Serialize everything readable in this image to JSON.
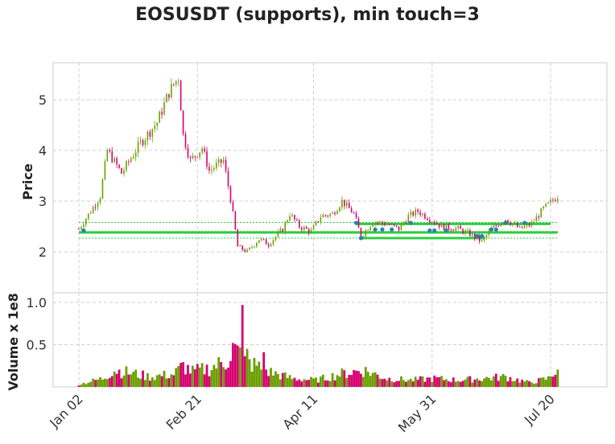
{
  "chart_data": {
    "type": "candlestick",
    "title": "EOSUSDT (supports), min touch=3",
    "price_panel": {
      "ylabel": "Price",
      "yticks": [
        2,
        3,
        4,
        5
      ],
      "ylim": [
        1.3,
        5.7
      ],
      "grid": true
    },
    "volume_panel": {
      "ylabel": "Volume x 1e8",
      "yticks": [
        0.5,
        1.0
      ],
      "ytick_labels": [
        "0.5",
        "1.0"
      ],
      "ylim": [
        0,
        1.05
      ],
      "grid": true
    },
    "x": {
      "start_date": "2023-01-02",
      "num_days": 203,
      "tick_labels": [
        "Jan 02",
        "Feb 21",
        "Apr 11",
        "May 31",
        "Jul 20"
      ],
      "tick_days": [
        0,
        50,
        99,
        149,
        199
      ]
    },
    "colors": {
      "up": "#6a9f00",
      "down": "#d6006f",
      "support": "#2ecc40",
      "marker": "#2c7fb8"
    },
    "price_anchors": [
      [
        0,
        2.45
      ],
      [
        5,
        2.8
      ],
      [
        9,
        3.1
      ],
      [
        12,
        4.0
      ],
      [
        18,
        3.55
      ],
      [
        26,
        4.15
      ],
      [
        33,
        4.55
      ],
      [
        38,
        5.15
      ],
      [
        42,
        5.45
      ],
      [
        44,
        4.3
      ],
      [
        47,
        3.8
      ],
      [
        52,
        4.05
      ],
      [
        55,
        3.6
      ],
      [
        61,
        3.8
      ],
      [
        64,
        3.05
      ],
      [
        67,
        2.1
      ],
      [
        71,
        2.0
      ],
      [
        76,
        2.25
      ],
      [
        80,
        2.15
      ],
      [
        86,
        2.45
      ],
      [
        89,
        2.75
      ],
      [
        93,
        2.5
      ],
      [
        98,
        2.4
      ],
      [
        102,
        2.7
      ],
      [
        107,
        2.75
      ],
      [
        111,
        3.0
      ],
      [
        116,
        2.75
      ],
      [
        119,
        2.3
      ],
      [
        124,
        2.6
      ],
      [
        130,
        2.55
      ],
      [
        135,
        2.45
      ],
      [
        139,
        2.7
      ],
      [
        143,
        2.8
      ],
      [
        148,
        2.65
      ],
      [
        153,
        2.5
      ],
      [
        160,
        2.45
      ],
      [
        165,
        2.35
      ],
      [
        170,
        2.2
      ],
      [
        174,
        2.45
      ],
      [
        180,
        2.65
      ],
      [
        186,
        2.45
      ],
      [
        191,
        2.55
      ],
      [
        196,
        2.85
      ],
      [
        202,
        3.1
      ]
    ],
    "volume_anchors": [
      [
        0,
        0.03
      ],
      [
        10,
        0.1
      ],
      [
        15,
        0.2
      ],
      [
        30,
        0.12
      ],
      [
        40,
        0.15
      ],
      [
        44,
        0.25
      ],
      [
        48,
        0.18
      ],
      [
        55,
        0.22
      ],
      [
        62,
        0.3
      ],
      [
        66,
        0.45
      ],
      [
        70,
        0.3
      ],
      [
        75,
        0.25
      ],
      [
        80,
        0.18
      ],
      [
        90,
        0.1
      ],
      [
        100,
        0.08
      ],
      [
        110,
        0.15
      ],
      [
        120,
        0.2
      ],
      [
        130,
        0.1
      ],
      [
        140,
        0.08
      ],
      [
        150,
        0.1
      ],
      [
        160,
        0.08
      ],
      [
        170,
        0.1
      ],
      [
        180,
        0.12
      ],
      [
        190,
        0.05
      ],
      [
        198,
        0.1
      ],
      [
        202,
        0.22
      ]
    ],
    "volume_spikes": [
      [
        65,
        0.52
      ],
      [
        69,
        0.97
      ],
      [
        71,
        0.45
      ],
      [
        78,
        0.41
      ]
    ],
    "support_levels": [
      {
        "price": 2.55,
        "from_day": 117,
        "to_day": 199,
        "style": "solid"
      },
      {
        "price": 2.38,
        "from_day": 0,
        "to_day": 202,
        "style": "solid"
      },
      {
        "price": 2.27,
        "from_day": 119,
        "to_day": 171,
        "style": "solid"
      },
      {
        "price": 2.58,
        "from_day": 0,
        "to_day": 202,
        "style": "dashed"
      },
      {
        "price": 2.4,
        "from_day": 0,
        "to_day": 202,
        "style": "dashed"
      },
      {
        "price": 2.27,
        "from_day": 0,
        "to_day": 202,
        "style": "dashed"
      }
    ],
    "touch_points": [
      [
        2,
        2.42
      ],
      [
        125,
        2.44
      ],
      [
        117,
        2.57
      ],
      [
        119,
        2.27
      ],
      [
        128,
        2.44
      ],
      [
        132,
        2.44
      ],
      [
        140,
        2.57
      ],
      [
        148,
        2.42
      ],
      [
        150,
        2.42
      ],
      [
        155,
        2.42
      ],
      [
        168,
        2.31
      ],
      [
        170,
        2.31
      ],
      [
        174,
        2.44
      ],
      [
        176,
        2.44
      ],
      [
        180,
        2.57
      ],
      [
        188,
        2.57
      ]
    ]
  }
}
